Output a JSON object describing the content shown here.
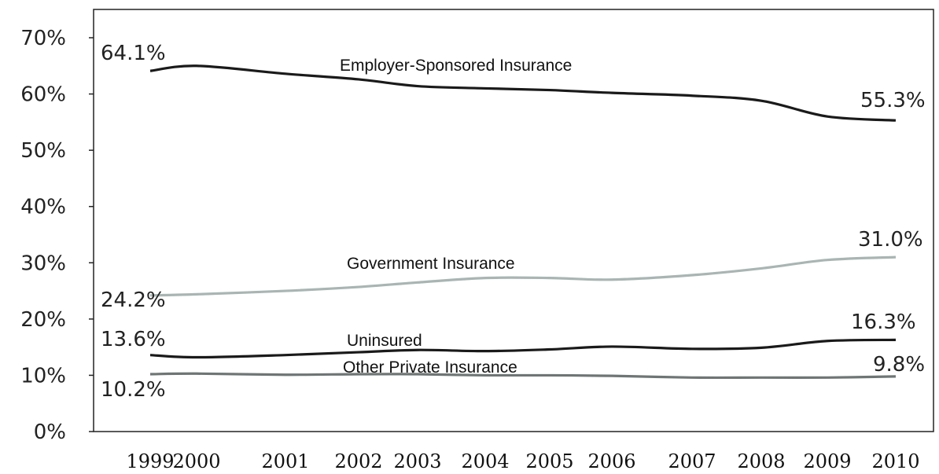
{
  "chart_data": {
    "type": "line",
    "x": [
      1999,
      2000,
      2001,
      2002,
      2003,
      2004,
      2005,
      2006,
      2007,
      2008,
      2009,
      2010
    ],
    "y_ticks": [
      "0%",
      "10%",
      "20%",
      "30%",
      "40%",
      "50%",
      "60%",
      "70%"
    ],
    "ylim": [
      0,
      70
    ],
    "grid": false,
    "series": [
      {
        "name": "Employer-Sponsored Insurance",
        "color": "#1a1a1a",
        "values": [
          64.1,
          65.0,
          63.6,
          62.6,
          61.4,
          61.0,
          60.7,
          60.2,
          59.7,
          58.8,
          56.0,
          55.3
        ],
        "start_label": "64.1%",
        "end_label": "55.3%"
      },
      {
        "name": "Government Insurance",
        "color": "#a9b5b3",
        "values": [
          24.2,
          24.4,
          25.0,
          25.7,
          26.5,
          27.3,
          27.3,
          27.0,
          27.8,
          29.0,
          30.5,
          31.0
        ],
        "start_label": "24.2%",
        "end_label": "31.0%"
      },
      {
        "name": "Uninsured",
        "color": "#1a1a1a",
        "values": [
          13.6,
          13.2,
          13.6,
          14.1,
          14.5,
          14.3,
          14.6,
          15.1,
          14.7,
          14.9,
          16.1,
          16.3
        ],
        "start_label": "13.6%",
        "end_label": "16.3%"
      },
      {
        "name": "Other Private Insurance",
        "color": "#6e7675",
        "values": [
          10.2,
          10.3,
          10.1,
          10.2,
          10.2,
          10.0,
          10.0,
          9.9,
          9.6,
          9.6,
          9.6,
          9.8
        ],
        "start_label": "10.2%",
        "end_label": "9.8%"
      }
    ]
  }
}
